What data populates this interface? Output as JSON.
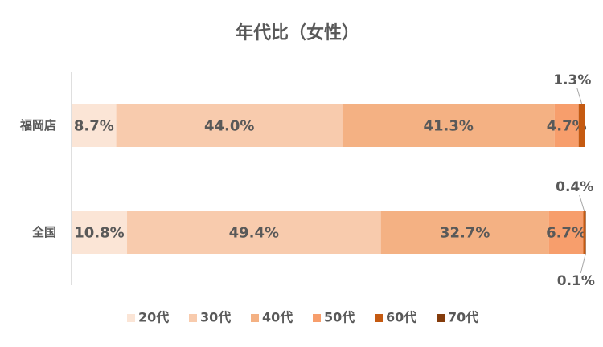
{
  "chart_data": {
    "type": "stacked-bar-horizontal",
    "title": "年代比（女性）",
    "categories": [
      "福岡店",
      "全国"
    ],
    "xlim": [
      0,
      100
    ],
    "series": [
      {
        "name": "20代",
        "color": "#fbe5d6",
        "values": [
          8.7,
          10.8
        ],
        "value_labels": [
          "8.7%",
          "10.8%"
        ]
      },
      {
        "name": "30代",
        "color": "#f8cbad",
        "values": [
          44.0,
          49.4
        ],
        "value_labels": [
          "44.0%",
          "49.4%"
        ]
      },
      {
        "name": "40代",
        "color": "#f4b183",
        "values": [
          41.3,
          32.7
        ],
        "value_labels": [
          "41.3%",
          "32.7%"
        ]
      },
      {
        "name": "50代",
        "color": "#f79e6c",
        "values": [
          4.7,
          6.7
        ],
        "value_labels": [
          "4.7%",
          "6.7%"
        ]
      },
      {
        "name": "60代",
        "color": "#c55a11",
        "values": [
          1.3,
          0.4
        ],
        "value_labels": [
          "1.3%",
          "0.4%"
        ]
      },
      {
        "name": "70代",
        "color": "#843c0c",
        "values": [
          0,
          0.1
        ],
        "value_labels": [
          null,
          "0.1%"
        ]
      }
    ]
  }
}
